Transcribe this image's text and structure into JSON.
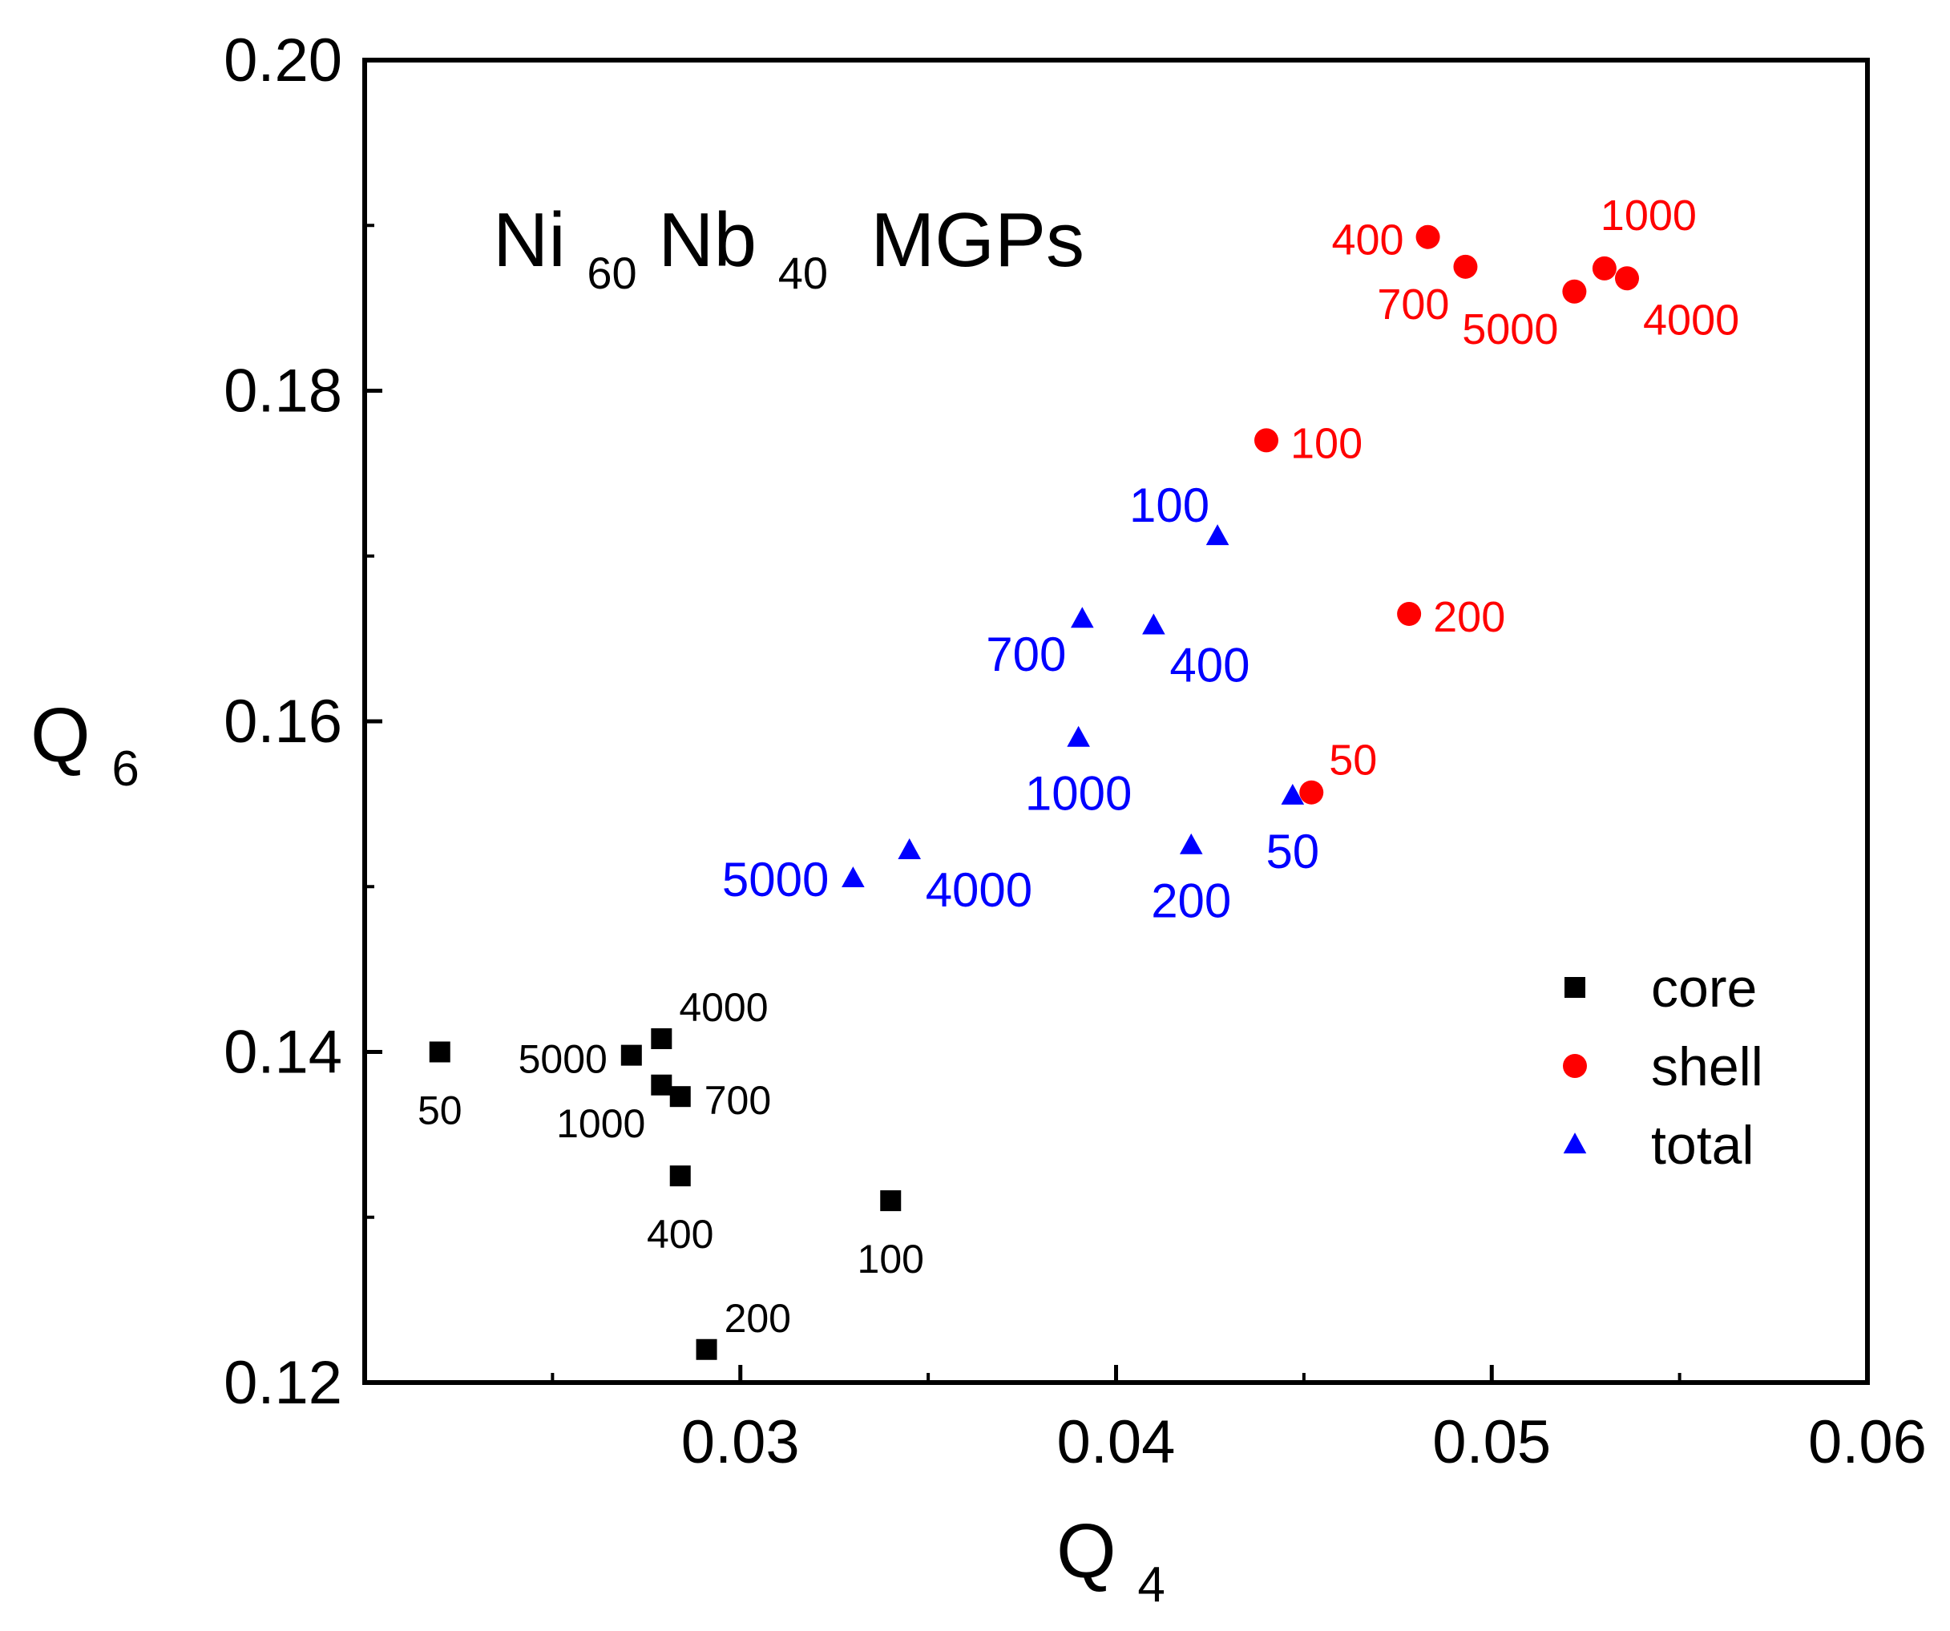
{
  "chart_data": {
    "type": "scatter",
    "title": "Ni60Nb40 MGPs",
    "title_parts": {
      "base1": "Ni",
      "sub1": "60",
      "base2": "Nb",
      "sub2": "40",
      "rest": " MGPs"
    },
    "xlabel": "Q4",
    "xlabel_parts": {
      "base": "Q",
      "sub": "4"
    },
    "ylabel": "Q6",
    "ylabel_parts": {
      "base": "Q",
      "sub": "6"
    },
    "xlim": [
      0.02,
      0.06
    ],
    "ylim": [
      0.12,
      0.2
    ],
    "x_ticks": [
      {
        "value": 0.03,
        "label": "0.03"
      },
      {
        "value": 0.04,
        "label": "0.04"
      },
      {
        "value": 0.05,
        "label": "0.05"
      },
      {
        "value": 0.06,
        "label": "0.06"
      }
    ],
    "x_minor_ticks": [
      0.025,
      0.035,
      0.045,
      0.055
    ],
    "y_ticks": [
      {
        "value": 0.12,
        "label": "0.12"
      },
      {
        "value": 0.14,
        "label": "0.14"
      },
      {
        "value": 0.16,
        "label": "0.16"
      },
      {
        "value": 0.18,
        "label": "0.18"
      },
      {
        "value": 0.2,
        "label": "0.20"
      }
    ],
    "y_minor_ticks": [
      0.13,
      0.15,
      0.17,
      0.19
    ],
    "grid": false,
    "legend_position": "bottom-right",
    "series": [
      {
        "name": "core",
        "marker": "square",
        "color": "#000000",
        "points": [
          {
            "x": 0.022,
            "y": 0.14,
            "label": "50",
            "label_pos": "below"
          },
          {
            "x": 0.034,
            "y": 0.131,
            "label": "100",
            "label_pos": "below"
          },
          {
            "x": 0.0291,
            "y": 0.122,
            "label": "200",
            "label_pos": "upper-right"
          },
          {
            "x": 0.0284,
            "y": 0.1325,
            "label": "400",
            "label_pos": "below"
          },
          {
            "x": 0.0284,
            "y": 0.1373,
            "label": "700",
            "label_pos": "right"
          },
          {
            "x": 0.0279,
            "y": 0.138,
            "label": "1000",
            "label_pos": "lower-left"
          },
          {
            "x": 0.0279,
            "y": 0.1408,
            "label": "4000",
            "label_pos": "upper-right"
          },
          {
            "x": 0.0271,
            "y": 0.1398,
            "label": "5000",
            "label_pos": "left"
          }
        ]
      },
      {
        "name": "shell",
        "marker": "circle",
        "color": "#ff0000",
        "points": [
          {
            "x": 0.0452,
            "y": 0.1557,
            "label": "50",
            "label_pos": "upper-right"
          },
          {
            "x": 0.044,
            "y": 0.177,
            "label": "100",
            "label_pos": "right"
          },
          {
            "x": 0.0478,
            "y": 0.1665,
            "label": "200",
            "label_pos": "right"
          },
          {
            "x": 0.0483,
            "y": 0.1893,
            "label": "400",
            "label_pos": "left"
          },
          {
            "x": 0.0493,
            "y": 0.1875,
            "label": "700",
            "label_pos": "lower-left"
          },
          {
            "x": 0.053,
            "y": 0.1874,
            "label": "1000",
            "label_pos": "above"
          },
          {
            "x": 0.0536,
            "y": 0.1868,
            "label": "4000",
            "label_pos": "lower-right"
          },
          {
            "x": 0.0522,
            "y": 0.186,
            "label": "5000",
            "label_pos": "lower-left"
          }
        ]
      },
      {
        "name": "total",
        "marker": "triangle",
        "color": "#0000ff",
        "points": [
          {
            "x": 0.0447,
            "y": 0.1555,
            "label": "50",
            "label_pos": "below"
          },
          {
            "x": 0.0427,
            "y": 0.1712,
            "label": "100",
            "label_pos": "upper-left"
          },
          {
            "x": 0.042,
            "y": 0.1525,
            "label": "200",
            "label_pos": "below"
          },
          {
            "x": 0.041,
            "y": 0.1658,
            "label": "400",
            "label_pos": "lower-right"
          },
          {
            "x": 0.0391,
            "y": 0.1662,
            "label": "700",
            "label_pos": "lower-left"
          },
          {
            "x": 0.039,
            "y": 0.159,
            "label": "1000",
            "label_pos": "below"
          },
          {
            "x": 0.0345,
            "y": 0.1522,
            "label": "4000",
            "label_pos": "lower-right"
          },
          {
            "x": 0.033,
            "y": 0.1505,
            "label": "5000",
            "label_pos": "left"
          }
        ]
      }
    ]
  }
}
